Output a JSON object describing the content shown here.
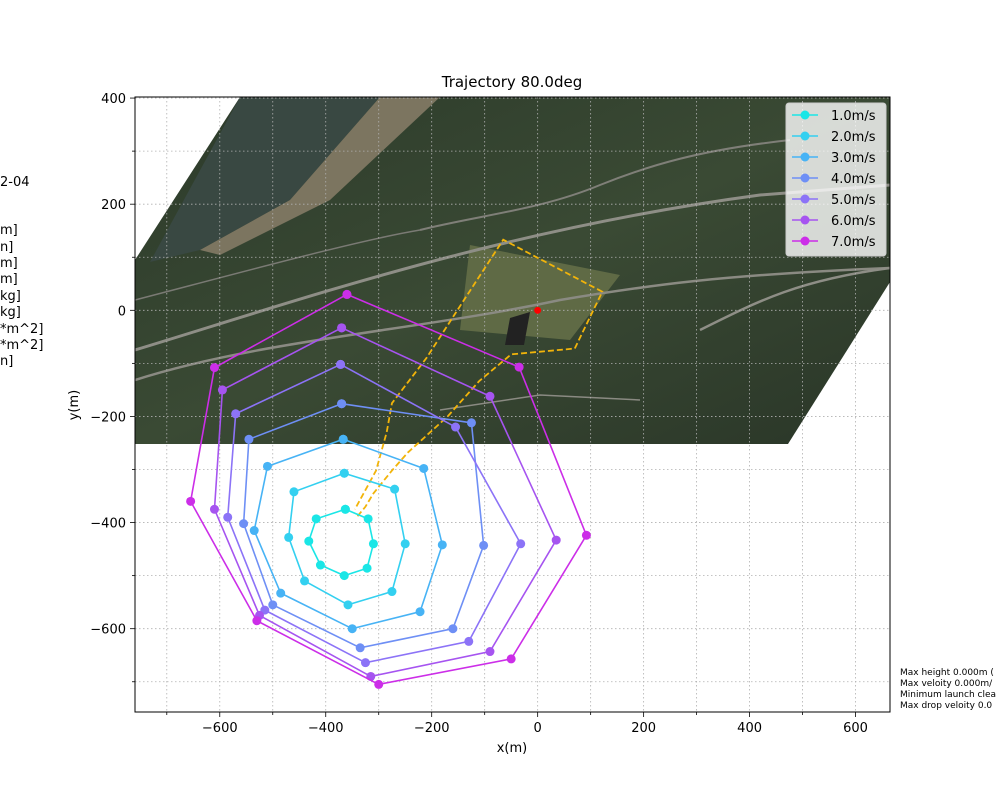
{
  "chart_data": {
    "type": "line",
    "title": "Trajectory 80.0deg",
    "xlabel": "x(m)",
    "ylabel": "y(m)",
    "xlim": [
      -760,
      665
    ],
    "ylim": [
      -757,
      402
    ],
    "xticks": [
      -600,
      -400,
      -200,
      0,
      200,
      400,
      600
    ],
    "yticks": [
      -600,
      -400,
      -200,
      0,
      200,
      400
    ],
    "xtick_labels": [
      "−600",
      "−400",
      "−200",
      "0",
      "200",
      "400",
      "600"
    ],
    "ytick_labels": [
      "−600",
      "−400",
      "−200",
      "0",
      "200",
      "400"
    ],
    "grid": true,
    "legend_position": "top-right",
    "series": [
      {
        "name": "1.0m/s",
        "color": "#1ae6e6",
        "x": [
          -363,
          -320,
          -310,
          -322,
          -365,
          -410,
          -432,
          -418,
          -363
        ],
        "y": [
          -375,
          -393,
          -440,
          -486,
          -500,
          -480,
          -435,
          -393,
          -375
        ]
      },
      {
        "name": "2.0m/s",
        "color": "#33d0f0",
        "x": [
          -365,
          -270,
          -250,
          -275,
          -358,
          -440,
          -470,
          -460,
          -365
        ],
        "y": [
          -307,
          -337,
          -440,
          -530,
          -555,
          -510,
          -428,
          -342,
          -307
        ]
      },
      {
        "name": "3.0m/s",
        "color": "#47b3f5",
        "x": [
          -367,
          -215,
          -180,
          -222,
          -350,
          -485,
          -535,
          -510,
          -367
        ],
        "y": [
          -243,
          -298,
          -442,
          -568,
          -600,
          -533,
          -415,
          -294,
          -243
        ]
      },
      {
        "name": "4.0m/s",
        "color": "#6e8ff5",
        "x": [
          -370,
          -125,
          -102,
          -160,
          -335,
          -500,
          -555,
          -545,
          -370
        ],
        "y": [
          -176,
          -212,
          -443,
          -600,
          -636,
          -555,
          -402,
          -243,
          -176
        ]
      },
      {
        "name": "5.0m/s",
        "color": "#8c73f7",
        "x": [
          -372,
          -155,
          -32,
          -130,
          -325,
          -515,
          -585,
          -570,
          -372
        ],
        "y": [
          -102,
          -220,
          -440,
          -624,
          -664,
          -565,
          -390,
          -195,
          -102
        ]
      },
      {
        "name": "6.0m/s",
        "color": "#a654f0",
        "x": [
          -370,
          -90,
          35,
          -90,
          -315,
          -525,
          -610,
          -595,
          -370
        ],
        "y": [
          -33,
          -162,
          -433,
          -643,
          -690,
          -575,
          -375,
          -150,
          -33
        ]
      },
      {
        "name": "7.0m/s",
        "color": "#cc2ee8",
        "x": [
          -360,
          -35,
          92,
          -50,
          -300,
          -530,
          -655,
          -610,
          -360
        ],
        "y": [
          30,
          -107,
          -424,
          -657,
          -705,
          -585,
          -360,
          -108,
          30
        ]
      }
    ],
    "boundary": {
      "color": "#f2b40a",
      "x": [
        -340,
        -325,
        -310,
        -275,
        -245,
        -170,
        -110,
        -50,
        70,
        122,
        -65,
        -140,
        -210,
        -275,
        -285,
        -305,
        -345
      ],
      "y": [
        -388,
        -370,
        -345,
        -302,
        -268,
        -200,
        -133,
        -83,
        -72,
        35,
        133,
        18,
        -90,
        -175,
        -230,
        -302,
        -375
      ]
    },
    "launch_point": {
      "x": 0,
      "y": 0,
      "color": "#ff0000"
    }
  },
  "side_labels": [
    "2-04",
    "m]",
    "n]",
    "m]",
    "m]",
    "kg]",
    "kg]",
    "*m^2]",
    "*m^2]",
    "n]"
  ],
  "footer_lines": [
    "Max height 0.000m (",
    "Max veloity 0.000m/",
    "Minimum launch clea",
    "Max drop veloity 0.0"
  ]
}
